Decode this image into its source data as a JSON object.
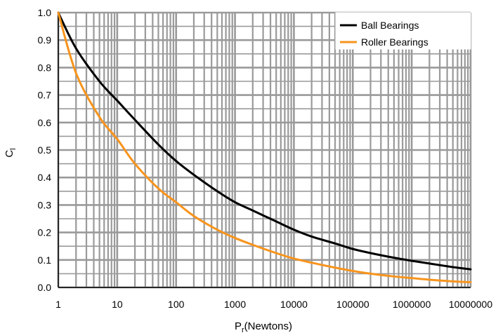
{
  "chart_data": {
    "type": "line",
    "title": "",
    "xlabel": {
      "main": "P",
      "sub": "r",
      "suffix": "(Newtons)"
    },
    "ylabel": {
      "main": "C",
      "sub": "l"
    },
    "x_scale": "log",
    "xlim": [
      1,
      10000000
    ],
    "ylim": [
      0,
      1.0
    ],
    "grid": true,
    "legend_position": "top-right",
    "x_ticks": [
      1,
      10,
      100,
      1000,
      10000,
      100000,
      1000000,
      10000000
    ],
    "x_tick_labels": [
      "1",
      "10",
      "100",
      "1000",
      "10000",
      "100000",
      "1000000",
      "10000000"
    ],
    "y_ticks": [
      0,
      0.1,
      0.2,
      0.3,
      0.4,
      0.5,
      0.6,
      0.7,
      0.8,
      0.9,
      1.0
    ],
    "y_tick_labels": [
      "0.0",
      "0.1",
      "0.2",
      "0.3",
      "0.4",
      "0.5",
      "0.6",
      "0.7",
      "0.8",
      "0.9",
      "1.0"
    ],
    "series": [
      {
        "name": "Ball Bearings",
        "color": "#000000",
        "x": [
          1,
          2,
          5,
          10,
          20,
          50,
          100,
          200,
          500,
          1000,
          2000,
          5000,
          10000,
          20000,
          50000,
          100000,
          200000,
          500000,
          1000000,
          2000000,
          5000000,
          10000000
        ],
        "y": [
          1.0,
          0.87,
          0.75,
          0.68,
          0.61,
          0.52,
          0.46,
          0.41,
          0.35,
          0.31,
          0.28,
          0.24,
          0.21,
          0.185,
          0.16,
          0.14,
          0.125,
          0.108,
          0.097,
          0.087,
          0.074,
          0.066
        ]
      },
      {
        "name": "Roller Bearings",
        "color": "#F7941D",
        "x": [
          1,
          2,
          5,
          10,
          20,
          50,
          100,
          200,
          500,
          1000,
          2000,
          5000,
          10000,
          20000,
          50000,
          100000,
          200000,
          500000,
          1000000,
          2000000,
          5000000,
          10000000
        ],
        "y": [
          1.0,
          0.78,
          0.62,
          0.54,
          0.45,
          0.36,
          0.31,
          0.26,
          0.21,
          0.18,
          0.155,
          0.125,
          0.105,
          0.09,
          0.072,
          0.06,
          0.05,
          0.04,
          0.034,
          0.028,
          0.022,
          0.019
        ]
      }
    ]
  }
}
